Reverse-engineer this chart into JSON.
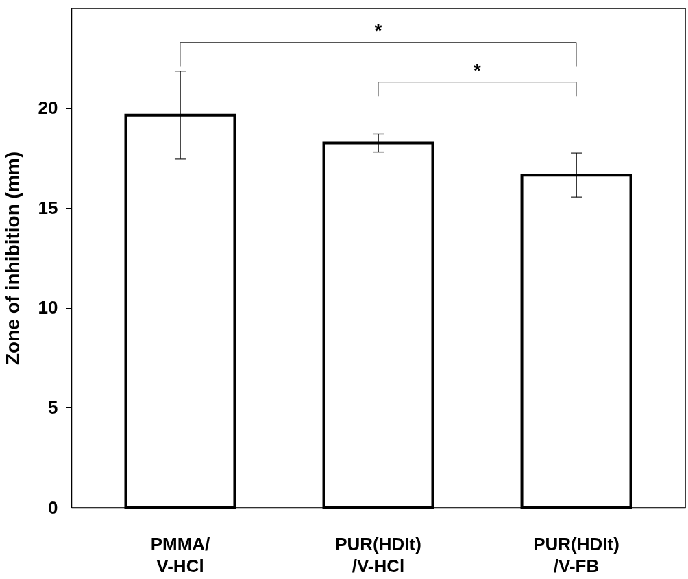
{
  "chart_data": {
    "type": "bar",
    "ylabel": "Zone of inhibition (mm)",
    "categories": [
      "PMMA/\nV-HCl",
      "PUR(HDIt)\n/V-HCl",
      "PUR(HDIt)\n/V-FB"
    ],
    "values": [
      19.65,
      18.25,
      16.65
    ],
    "color": "#ffffff",
    "errors": [
      2.2,
      0.45,
      1.1
    ],
    "ylim": [
      0,
      25
    ],
    "yticks": [
      0,
      5,
      10,
      15,
      20
    ],
    "grid": false,
    "annotations": [
      "*",
      "*"
    ]
  }
}
